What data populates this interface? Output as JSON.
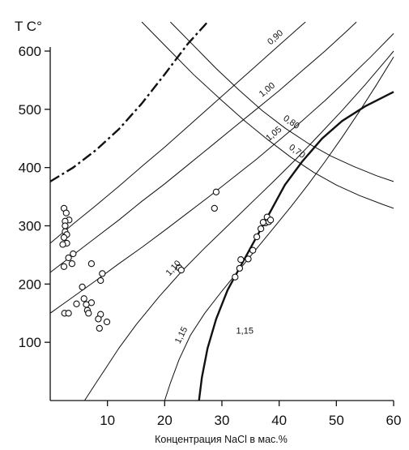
{
  "chart_data": {
    "type": "scatter",
    "title": "",
    "ylabel": "T C°",
    "xlabel": "Концентрация NaCl в мас.%",
    "xlim": [
      0,
      60
    ],
    "ylim": [
      0,
      650
    ],
    "x_ticks": [
      10,
      20,
      30,
      40,
      50,
      60
    ],
    "y_ticks": [
      100,
      200,
      300,
      400,
      500,
      600
    ],
    "grid": false,
    "colors": {
      "ink": "#111111",
      "marker_fill": "#ffffff"
    },
    "points": [
      {
        "x": 2.4,
        "y": 330
      },
      {
        "x": 2.8,
        "y": 322
      },
      {
        "x": 3.3,
        "y": 310
      },
      {
        "x": 2.6,
        "y": 308
      },
      {
        "x": 2.6,
        "y": 300
      },
      {
        "x": 2.6,
        "y": 290
      },
      {
        "x": 2.9,
        "y": 285
      },
      {
        "x": 2.4,
        "y": 280
      },
      {
        "x": 2.9,
        "y": 270
      },
      {
        "x": 2.2,
        "y": 268
      },
      {
        "x": 4.0,
        "y": 252
      },
      {
        "x": 3.2,
        "y": 245
      },
      {
        "x": 3.8,
        "y": 235
      },
      {
        "x": 2.4,
        "y": 230
      },
      {
        "x": 7.2,
        "y": 235
      },
      {
        "x": 9.1,
        "y": 218
      },
      {
        "x": 8.8,
        "y": 206
      },
      {
        "x": 5.6,
        "y": 195
      },
      {
        "x": 5.9,
        "y": 175
      },
      {
        "x": 7.2,
        "y": 168
      },
      {
        "x": 6.3,
        "y": 165
      },
      {
        "x": 4.6,
        "y": 166
      },
      {
        "x": 6.5,
        "y": 155
      },
      {
        "x": 6.7,
        "y": 150
      },
      {
        "x": 8.8,
        "y": 148
      },
      {
        "x": 2.5,
        "y": 150
      },
      {
        "x": 3.2,
        "y": 150
      },
      {
        "x": 8.4,
        "y": 140
      },
      {
        "x": 9.9,
        "y": 135
      },
      {
        "x": 8.6,
        "y": 124
      },
      {
        "x": 22.5,
        "y": 228
      },
      {
        "x": 22.9,
        "y": 224
      },
      {
        "x": 29.0,
        "y": 358
      },
      {
        "x": 28.7,
        "y": 330
      },
      {
        "x": 32.3,
        "y": 212
      },
      {
        "x": 33.1,
        "y": 227
      },
      {
        "x": 33.3,
        "y": 242
      },
      {
        "x": 34.6,
        "y": 243
      },
      {
        "x": 35.4,
        "y": 258
      },
      {
        "x": 36.1,
        "y": 281
      },
      {
        "x": 36.8,
        "y": 295
      },
      {
        "x": 37.6,
        "y": 305
      },
      {
        "x": 37.9,
        "y": 315
      },
      {
        "x": 38.2,
        "y": 307
      },
      {
        "x": 37.2,
        "y": 306
      },
      {
        "x": 38.5,
        "y": 310
      }
    ],
    "isochores": [
      {
        "label": "0,70",
        "points": [
          [
            16.0,
            650
          ],
          [
            21.0,
            600
          ],
          [
            25.0,
            560
          ],
          [
            30.0,
            515
          ],
          [
            34.0,
            480
          ],
          [
            38.0,
            448
          ],
          [
            42.0,
            418
          ],
          [
            46.0,
            392
          ],
          [
            50.0,
            370
          ],
          [
            54.0,
            352
          ],
          [
            58.0,
            337
          ],
          [
            60.0,
            330
          ]
        ]
      },
      {
        "label": "0,80",
        "points": [
          [
            21.0,
            650
          ],
          [
            25.0,
            610
          ],
          [
            29.0,
            570
          ],
          [
            33.0,
            533
          ],
          [
            37.0,
            498
          ],
          [
            41.0,
            468
          ],
          [
            45.0,
            442
          ],
          [
            49.0,
            420
          ],
          [
            53.0,
            402
          ],
          [
            57.0,
            386
          ],
          [
            60.0,
            376
          ]
        ]
      },
      {
        "label": "0,90",
        "points": [
          [
            0.0,
            270
          ],
          [
            4.0,
            303
          ],
          [
            8.0,
            335
          ],
          [
            12.0,
            368
          ],
          [
            16.0,
            402
          ],
          [
            20.0,
            435
          ],
          [
            24.0,
            470
          ],
          [
            28.0,
            505
          ],
          [
            32.0,
            540
          ],
          [
            36.0,
            575
          ],
          [
            40.0,
            610
          ],
          [
            44.0,
            645
          ],
          [
            44.6,
            650
          ]
        ]
      },
      {
        "label": "1,00",
        "points": [
          [
            0.0,
            220
          ],
          [
            4.0,
            250
          ],
          [
            8.0,
            280
          ],
          [
            12.0,
            310
          ],
          [
            16.0,
            342
          ],
          [
            20.0,
            372
          ],
          [
            24.0,
            404
          ],
          [
            28.0,
            436
          ],
          [
            32.0,
            468
          ],
          [
            36.0,
            500
          ],
          [
            40.0,
            532
          ],
          [
            44.0,
            566
          ],
          [
            48.0,
            600
          ],
          [
            52.0,
            636
          ],
          [
            53.5,
            650
          ]
        ]
      },
      {
        "label": "1,05",
        "points": [
          [
            0.0,
            150
          ],
          [
            4.0,
            178
          ],
          [
            8.0,
            206
          ],
          [
            12.0,
            235
          ],
          [
            16.0,
            263
          ],
          [
            20.0,
            292
          ],
          [
            24.0,
            322
          ],
          [
            28.0,
            352
          ],
          [
            32.0,
            383
          ],
          [
            36.0,
            414
          ],
          [
            40.0,
            447
          ],
          [
            44.0,
            480
          ],
          [
            48.0,
            515
          ],
          [
            52.0,
            552
          ],
          [
            56.0,
            590
          ],
          [
            60.0,
            630
          ]
        ]
      },
      {
        "label": "1,10",
        "points": [
          [
            6.0,
            0
          ],
          [
            8.0,
            30
          ],
          [
            10.0,
            60
          ],
          [
            12.0,
            90
          ],
          [
            15.0,
            130
          ],
          [
            19.0,
            178
          ],
          [
            23.0,
            222
          ],
          [
            27.0,
            262
          ],
          [
            31.0,
            300
          ],
          [
            35.0,
            338
          ],
          [
            39.0,
            376
          ],
          [
            43.0,
            415
          ],
          [
            47.0,
            456
          ],
          [
            51.0,
            498
          ],
          [
            55.0,
            542
          ],
          [
            59.0,
            588
          ],
          [
            60.0,
            600
          ]
        ]
      },
      {
        "label": "1,15",
        "points": [
          [
            20.0,
            0
          ],
          [
            21.0,
            30
          ],
          [
            22.5,
            70
          ],
          [
            24.5,
            112
          ],
          [
            27.0,
            150
          ],
          [
            30.0,
            188
          ],
          [
            33.0,
            224
          ],
          [
            36.0,
            260
          ],
          [
            39.0,
            296
          ],
          [
            42.0,
            332
          ],
          [
            45.0,
            370
          ],
          [
            48.0,
            410
          ],
          [
            51.0,
            452
          ],
          [
            54.0,
            496
          ],
          [
            57.0,
            542
          ],
          [
            60.0,
            590
          ]
        ]
      }
    ],
    "solubility_curve": [
      [
        26.0,
        0
      ],
      [
        26.5,
        40
      ],
      [
        27.5,
        90
      ],
      [
        29.0,
        140
      ],
      [
        31.0,
        190
      ],
      [
        33.5,
        235
      ],
      [
        36.0,
        280
      ],
      [
        38.5,
        325
      ],
      [
        41.0,
        370
      ],
      [
        44.0,
        410
      ],
      [
        47.5,
        450
      ],
      [
        51.0,
        480
      ],
      [
        55.0,
        505
      ],
      [
        60.0,
        530
      ]
    ],
    "critical_curve": [
      [
        0.0,
        376
      ],
      [
        4.0,
        400
      ],
      [
        8.0,
        430
      ],
      [
        12.0,
        466
      ],
      [
        16.0,
        510
      ],
      [
        20.0,
        560
      ],
      [
        24.0,
        612
      ],
      [
        27.5,
        650
      ]
    ],
    "annotations": [
      {
        "text": "1,15",
        "x": 34.0,
        "y": 115
      }
    ]
  }
}
